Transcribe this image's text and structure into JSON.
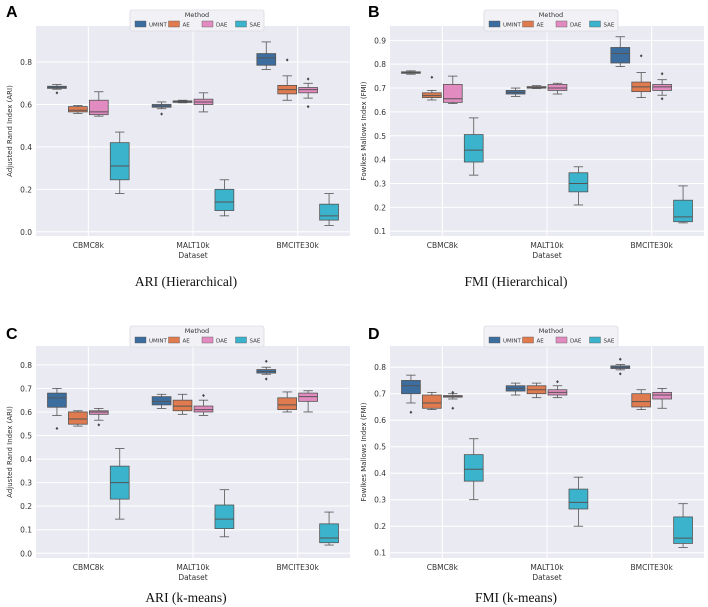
{
  "chart_data": [
    {
      "type": "box",
      "panel_label": "A",
      "caption": "ARI (Hierarchical)",
      "xlabel": "Dataset",
      "ylabel": "Adjusted Rand Index (ARI)",
      "ylim": [
        -0.02,
        0.97
      ],
      "yticks": [
        0.0,
        0.2,
        0.4,
        0.6,
        0.8
      ],
      "categories": [
        "CBMC8k",
        "MALT10k",
        "BMCITE30k"
      ],
      "legend_title": "Method",
      "legend_position": "top-center",
      "grid": true,
      "series": [
        {
          "name": "UMINT",
          "color": "#3c6d9f",
          "boxes": [
            {
              "whislo": 0.672,
              "q1": 0.676,
              "med": 0.681,
              "q3": 0.686,
              "whishi": 0.694,
              "fliers": [
                0.655
              ]
            },
            {
              "whislo": 0.58,
              "q1": 0.587,
              "med": 0.593,
              "q3": 0.6,
              "whishi": 0.612,
              "fliers": [
                0.555
              ]
            },
            {
              "whislo": 0.765,
              "q1": 0.785,
              "med": 0.82,
              "q3": 0.84,
              "whishi": 0.895,
              "fliers": []
            }
          ]
        },
        {
          "name": "AE",
          "color": "#e07b4f",
          "boxes": [
            {
              "whislo": 0.558,
              "q1": 0.565,
              "med": 0.573,
              "q3": 0.59,
              "whishi": 0.595,
              "fliers": []
            },
            {
              "whislo": 0.608,
              "q1": 0.611,
              "med": 0.614,
              "q3": 0.617,
              "whishi": 0.62,
              "fliers": []
            },
            {
              "whislo": 0.62,
              "q1": 0.65,
              "med": 0.67,
              "q3": 0.69,
              "whishi": 0.735,
              "fliers": [
                0.81
              ]
            }
          ]
        },
        {
          "name": "DAE",
          "color": "#e28bc0",
          "boxes": [
            {
              "whislo": 0.545,
              "q1": 0.552,
              "med": 0.565,
              "q3": 0.62,
              "whishi": 0.66,
              "fliers": []
            },
            {
              "whislo": 0.565,
              "q1": 0.6,
              "med": 0.612,
              "q3": 0.625,
              "whishi": 0.655,
              "fliers": []
            },
            {
              "whislo": 0.63,
              "q1": 0.655,
              "med": 0.67,
              "q3": 0.68,
              "whishi": 0.7,
              "fliers": [
                0.72,
                0.59
              ]
            }
          ]
        },
        {
          "name": "SAE",
          "color": "#3bb3cc",
          "boxes": [
            {
              "whislo": 0.18,
              "q1": 0.245,
              "med": 0.31,
              "q3": 0.42,
              "whishi": 0.47,
              "fliers": []
            },
            {
              "whislo": 0.075,
              "q1": 0.1,
              "med": 0.14,
              "q3": 0.2,
              "whishi": 0.245,
              "fliers": []
            },
            {
              "whislo": 0.03,
              "q1": 0.055,
              "med": 0.075,
              "q3": 0.13,
              "whishi": 0.18,
              "fliers": []
            }
          ]
        }
      ]
    },
    {
      "type": "box",
      "panel_label": "B",
      "caption": "FMI (Hierarchical)",
      "xlabel": "Dataset",
      "ylabel": "Fowlkes Mallows Index (FMI)",
      "ylim": [
        0.08,
        0.96
      ],
      "yticks": [
        0.1,
        0.2,
        0.3,
        0.4,
        0.5,
        0.6,
        0.7,
        0.8,
        0.9
      ],
      "categories": [
        "CBMC8k",
        "MALT10k",
        "BMCITE30k"
      ],
      "legend_title": "Method",
      "legend_position": "top-center",
      "grid": true,
      "series": [
        {
          "name": "UMINT",
          "color": "#3c6d9f",
          "boxes": [
            {
              "whislo": 0.758,
              "q1": 0.762,
              "med": 0.765,
              "q3": 0.768,
              "whishi": 0.772,
              "fliers": []
            },
            {
              "whislo": 0.665,
              "q1": 0.675,
              "med": 0.682,
              "q3": 0.69,
              "whishi": 0.7,
              "fliers": []
            },
            {
              "whislo": 0.79,
              "q1": 0.805,
              "med": 0.845,
              "q3": 0.87,
              "whishi": 0.915,
              "fliers": []
            }
          ]
        },
        {
          "name": "AE",
          "color": "#e07b4f",
          "boxes": [
            {
              "whislo": 0.65,
              "q1": 0.66,
              "med": 0.668,
              "q3": 0.68,
              "whishi": 0.69,
              "fliers": [
                0.745
              ]
            },
            {
              "whislo": 0.698,
              "q1": 0.7,
              "med": 0.703,
              "q3": 0.706,
              "whishi": 0.71,
              "fliers": []
            },
            {
              "whislo": 0.66,
              "q1": 0.685,
              "med": 0.705,
              "q3": 0.725,
              "whishi": 0.765,
              "fliers": [
                0.835
              ]
            }
          ]
        },
        {
          "name": "DAE",
          "color": "#e28bc0",
          "boxes": [
            {
              "whislo": 0.635,
              "q1": 0.64,
              "med": 0.655,
              "q3": 0.715,
              "whishi": 0.75,
              "fliers": []
            },
            {
              "whislo": 0.675,
              "q1": 0.69,
              "med": 0.7,
              "q3": 0.715,
              "whishi": 0.72,
              "fliers": []
            },
            {
              "whislo": 0.67,
              "q1": 0.69,
              "med": 0.705,
              "q3": 0.715,
              "whishi": 0.735,
              "fliers": [
                0.76,
                0.655
              ]
            }
          ]
        },
        {
          "name": "SAE",
          "color": "#3bb3cc",
          "boxes": [
            {
              "whislo": 0.335,
              "q1": 0.39,
              "med": 0.44,
              "q3": 0.505,
              "whishi": 0.575,
              "fliers": []
            },
            {
              "whislo": 0.21,
              "q1": 0.265,
              "med": 0.3,
              "q3": 0.345,
              "whishi": 0.37,
              "fliers": []
            },
            {
              "whislo": 0.135,
              "q1": 0.14,
              "med": 0.16,
              "q3": 0.23,
              "whishi": 0.29,
              "fliers": []
            }
          ]
        }
      ]
    },
    {
      "type": "box",
      "panel_label": "C",
      "caption": "ARI (k-means)",
      "xlabel": "Dataset",
      "ylabel": "Adjusted Rand Index (ARI)",
      "ylim": [
        -0.02,
        0.88
      ],
      "yticks": [
        0.0,
        0.1,
        0.2,
        0.3,
        0.4,
        0.5,
        0.6,
        0.7,
        0.8
      ],
      "categories": [
        "CBMC8k",
        "MALT10k",
        "BMCITE30k"
      ],
      "legend_title": "Method",
      "legend_position": "top-center",
      "grid": true,
      "series": [
        {
          "name": "UMINT",
          "color": "#3c6d9f",
          "boxes": [
            {
              "whislo": 0.585,
              "q1": 0.62,
              "med": 0.66,
              "q3": 0.68,
              "whishi": 0.7,
              "fliers": [
                0.53
              ]
            },
            {
              "whislo": 0.615,
              "q1": 0.63,
              "med": 0.645,
              "q3": 0.665,
              "whishi": 0.675,
              "fliers": []
            },
            {
              "whislo": 0.76,
              "q1": 0.765,
              "med": 0.772,
              "q3": 0.78,
              "whishi": 0.79,
              "fliers": [
                0.815,
                0.74
              ]
            }
          ]
        },
        {
          "name": "AE",
          "color": "#e07b4f",
          "boxes": [
            {
              "whislo": 0.54,
              "q1": 0.548,
              "med": 0.57,
              "q3": 0.6,
              "whishi": 0.605,
              "fliers": []
            },
            {
              "whislo": 0.59,
              "q1": 0.605,
              "med": 0.625,
              "q3": 0.65,
              "whishi": 0.675,
              "fliers": []
            },
            {
              "whislo": 0.6,
              "q1": 0.61,
              "med": 0.63,
              "q3": 0.66,
              "whishi": 0.685,
              "fliers": []
            }
          ]
        },
        {
          "name": "DAE",
          "color": "#e28bc0",
          "boxes": [
            {
              "whislo": 0.565,
              "q1": 0.59,
              "med": 0.6,
              "q3": 0.605,
              "whishi": 0.615,
              "fliers": [
                0.545
              ]
            },
            {
              "whislo": 0.585,
              "q1": 0.6,
              "med": 0.61,
              "q3": 0.625,
              "whishi": 0.65,
              "fliers": [
                0.67
              ]
            },
            {
              "whislo": 0.6,
              "q1": 0.645,
              "med": 0.665,
              "q3": 0.68,
              "whishi": 0.69,
              "fliers": []
            }
          ]
        },
        {
          "name": "SAE",
          "color": "#3bb3cc",
          "boxes": [
            {
              "whislo": 0.145,
              "q1": 0.23,
              "med": 0.3,
              "q3": 0.37,
              "whishi": 0.445,
              "fliers": []
            },
            {
              "whislo": 0.07,
              "q1": 0.105,
              "med": 0.145,
              "q3": 0.205,
              "whishi": 0.27,
              "fliers": []
            },
            {
              "whislo": 0.035,
              "q1": 0.045,
              "med": 0.065,
              "q3": 0.125,
              "whishi": 0.175,
              "fliers": []
            }
          ]
        }
      ]
    },
    {
      "type": "box",
      "panel_label": "D",
      "caption": "FMI (k-means)",
      "xlabel": "Dataset",
      "ylabel": "Fowlkes Mallows Index (FMI)",
      "ylim": [
        0.08,
        0.88
      ],
      "yticks": [
        0.1,
        0.2,
        0.3,
        0.4,
        0.5,
        0.6,
        0.7,
        0.8
      ],
      "categories": [
        "CBMC8k",
        "MALT10k",
        "BMCITE30k"
      ],
      "legend_title": "Method",
      "legend_position": "top-center",
      "grid": true,
      "series": [
        {
          "name": "UMINT",
          "color": "#3c6d9f",
          "boxes": [
            {
              "whislo": 0.665,
              "q1": 0.7,
              "med": 0.73,
              "q3": 0.75,
              "whishi": 0.77,
              "fliers": [
                0.63
              ]
            },
            {
              "whislo": 0.695,
              "q1": 0.71,
              "med": 0.72,
              "q3": 0.73,
              "whishi": 0.74,
              "fliers": []
            },
            {
              "whislo": 0.79,
              "q1": 0.795,
              "med": 0.8,
              "q3": 0.805,
              "whishi": 0.81,
              "fliers": [
                0.83,
                0.775
              ]
            }
          ]
        },
        {
          "name": "AE",
          "color": "#e07b4f",
          "boxes": [
            {
              "whislo": 0.64,
              "q1": 0.645,
              "med": 0.665,
              "q3": 0.695,
              "whishi": 0.705,
              "fliers": []
            },
            {
              "whislo": 0.685,
              "q1": 0.7,
              "med": 0.715,
              "q3": 0.73,
              "whishi": 0.74,
              "fliers": []
            },
            {
              "whislo": 0.64,
              "q1": 0.65,
              "med": 0.67,
              "q3": 0.7,
              "whishi": 0.715,
              "fliers": []
            }
          ]
        },
        {
          "name": "DAE",
          "color": "#e28bc0",
          "boxes": [
            {
              "whislo": 0.68,
              "q1": 0.687,
              "med": 0.69,
              "q3": 0.693,
              "whishi": 0.7,
              "fliers": [
                0.705,
                0.645
              ]
            },
            {
              "whislo": 0.685,
              "q1": 0.695,
              "med": 0.705,
              "q3": 0.715,
              "whishi": 0.73,
              "fliers": [
                0.745
              ]
            },
            {
              "whislo": 0.645,
              "q1": 0.68,
              "med": 0.695,
              "q3": 0.705,
              "whishi": 0.72,
              "fliers": []
            }
          ]
        },
        {
          "name": "SAE",
          "color": "#3bb3cc",
          "boxes": [
            {
              "whislo": 0.3,
              "q1": 0.37,
              "med": 0.415,
              "q3": 0.47,
              "whishi": 0.53,
              "fliers": []
            },
            {
              "whislo": 0.2,
              "q1": 0.265,
              "med": 0.29,
              "q3": 0.34,
              "whishi": 0.385,
              "fliers": []
            },
            {
              "whislo": 0.12,
              "q1": 0.135,
              "med": 0.155,
              "q3": 0.235,
              "whishi": 0.285,
              "fliers": []
            }
          ]
        }
      ]
    }
  ]
}
